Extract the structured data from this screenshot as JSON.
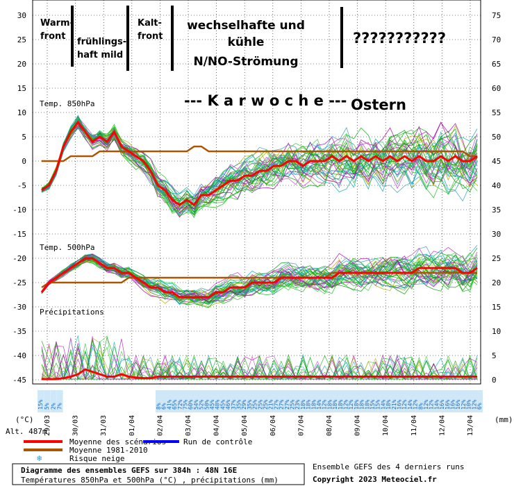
{
  "chart_data": {
    "type": "line",
    "unit_left": "(°C)",
    "unit_right": "(mm)",
    "altitude_label": "Alt. 487m",
    "left_ticks": [
      30,
      25,
      20,
      15,
      10,
      5,
      0,
      -5,
      -10,
      -15,
      -20,
      -25,
      -30,
      -35,
      -40,
      -45
    ],
    "right_ticks_temp": [
      75,
      70,
      65,
      60,
      55,
      50,
      45,
      40,
      35
    ],
    "right_ticks_precip": [
      30,
      25,
      20,
      15,
      10,
      5,
      0
    ],
    "dates": [
      "29/03",
      "30/03",
      "31/03",
      "01/04",
      "02/04",
      "03/04",
      "04/04",
      "05/04",
      "06/04",
      "07/04",
      "08/04",
      "09/04",
      "10/04",
      "11/04",
      "12/04",
      "13/04"
    ],
    "sections": {
      "t850": "Temp. 850hPa",
      "t500": "Temp. 500hPa",
      "precip": "Précipitations"
    },
    "snow_risk_early": [
      "15%",
      "5%",
      "2%",
      "7%"
    ],
    "snow_risk_late": [
      "8%",
      "6%",
      "41%",
      "65%",
      "72%",
      "75%",
      "60%",
      "54%",
      "52%",
      "50%",
      "45%",
      "48%",
      "45%",
      "46%",
      "37%",
      "35%",
      "29%",
      "35%",
      "25%",
      "25%",
      "25%",
      "21%",
      "27%",
      "27%",
      "27%",
      "25%",
      "23%",
      "18%",
      "18%",
      "18%",
      "14%",
      "12%",
      "18%",
      "18%",
      "18%",
      "12%",
      "12%",
      "18%",
      "18%",
      "18%",
      "15%",
      "15%",
      "14%",
      "18%",
      "21%",
      "16%",
      "12%",
      "14%",
      "12%",
      "8%",
      "12%",
      "12%",
      "14%",
      "16%",
      "16%",
      "16%",
      "16%",
      "12%",
      "10%",
      "12%",
      "6%"
    ],
    "annotations": {
      "warmfront": [
        "Warm-",
        "front"
      ],
      "fruehling": [
        "frühlings-",
        "haft mild"
      ],
      "kaltfront": [
        "Kalt-",
        "front"
      ],
      "wechsel": [
        "wechselhafte und",
        "kühle",
        "N/NO-Strömung"
      ],
      "questions": "???????????",
      "karwoche": "--- K a r w o c h e ---",
      "ostern": "Ostern"
    },
    "series": [
      {
        "name": "Moyenne des scénarios",
        "color": "#ff0000"
      },
      {
        "name": "Run de contrôle",
        "color": "#0000ff"
      },
      {
        "name": "Moyenne 1981-2010",
        "color": "#aa5500"
      },
      {
        "name": "Risque neige",
        "color": "#3399cc"
      }
    ],
    "t850_mean": [
      -6,
      -5,
      -2,
      3,
      6,
      8,
      6,
      4,
      5,
      4,
      6,
      3,
      2,
      1,
      0,
      -2,
      -5,
      -6,
      -8,
      -9,
      -8,
      -9,
      -7,
      -7,
      -6,
      -5,
      -4,
      -4,
      -3,
      -3,
      -2,
      -2,
      -1,
      -1,
      0,
      0,
      -1,
      0,
      0,
      0,
      1,
      0,
      1,
      0,
      1,
      0,
      1,
      0,
      1,
      0,
      1,
      0,
      1,
      0,
      0,
      1,
      0,
      1,
      0,
      0,
      1
    ],
    "t850_climo": [
      0,
      0,
      0,
      0,
      1,
      1,
      1,
      1,
      2,
      2,
      2,
      2,
      2,
      2,
      2,
      2,
      2,
      2,
      2,
      2,
      2,
      3,
      3,
      2,
      2,
      2,
      2,
      2,
      2,
      2,
      2,
      2,
      2,
      2,
      2,
      2,
      2,
      2,
      2,
      2,
      2,
      2,
      2,
      2,
      2,
      2,
      2,
      2,
      2,
      2,
      2,
      2,
      2,
      2,
      2,
      2,
      2,
      2,
      2,
      1,
      1
    ],
    "t500_mean": [
      -27,
      -25,
      -24,
      -23,
      -22,
      -21,
      -20,
      -20,
      -21,
      -22,
      -22,
      -23,
      -23,
      -24,
      -25,
      -26,
      -26,
      -27,
      -27,
      -28,
      -28,
      -28,
      -28,
      -28,
      -27,
      -27,
      -26,
      -26,
      -26,
      -25,
      -25,
      -25,
      -25,
      -24,
      -24,
      -24,
      -24,
      -24,
      -24,
      -24,
      -24,
      -23,
      -23,
      -23,
      -23,
      -23,
      -23,
      -23,
      -23,
      -23,
      -23,
      -23,
      -22,
      -22,
      -22,
      -22,
      -22,
      -22,
      -23,
      -23,
      -22
    ],
    "t500_climo": [
      -26,
      -25,
      -25,
      -25,
      -25,
      -25,
      -25,
      -25,
      -25,
      -25,
      -25,
      -25,
      -24,
      -24,
      -24,
      -24,
      -24,
      -24,
      -24,
      -24,
      -24,
      -24,
      -24,
      -24,
      -24,
      -24,
      -24,
      -24,
      -24,
      -24,
      -24,
      -24,
      -24,
      -24,
      -24,
      -24,
      -24,
      -24,
      -24,
      -24,
      -23,
      -23,
      -23,
      -23,
      -23,
      -23,
      -23,
      -23,
      -23,
      -23,
      -23,
      -23,
      -23,
      -23,
      -23,
      -23,
      -23,
      -23,
      -23,
      -23,
      -23
    ],
    "precip_mean": [
      0,
      0,
      0,
      0.2,
      0.5,
      1,
      2,
      1.5,
      1,
      0.5,
      0.5,
      1,
      0.5,
      0.3,
      0.2,
      0.2,
      0.5,
      0.5,
      0.5,
      0.5,
      0.5,
      0.5,
      0.5,
      0.5,
      0.5,
      0.5,
      0.5,
      0.5,
      0.5,
      0.5,
      0.5,
      0.5,
      0.5,
      0.5,
      0.5,
      0.5,
      0.5,
      0.5,
      0.5,
      0.5,
      0.5,
      0.5,
      0.5,
      0.5,
      0.5,
      0.5,
      0.5,
      0.5,
      0.5,
      0.5,
      0.5,
      0.5,
      0.5,
      0.5,
      0.5,
      0.5,
      0.5,
      0.5,
      0.5,
      0.5,
      0.5
    ],
    "footer": {
      "title": "Diagramme des ensembles GEFS sur 384h : 48N 16E",
      "subtitle": "Températures 850hPa et 500hPa (°C) , précipitations (mm)",
      "runs": "Ensemble GEFS des 4 derniers runs",
      "copyright": "Copyright 2023 Meteociel.fr"
    }
  }
}
